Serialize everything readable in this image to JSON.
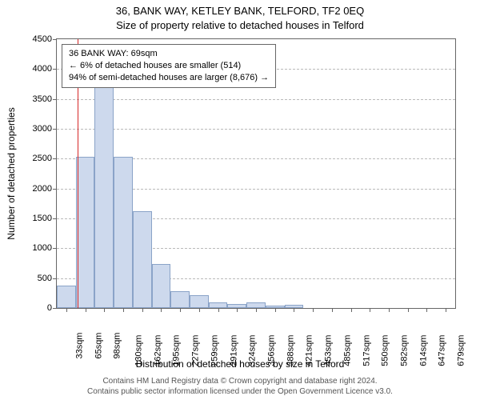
{
  "title": {
    "line1": "36, BANK WAY, KETLEY BANK, TELFORD, TF2 0EQ",
    "line2": "Size of property relative to detached houses in Telford"
  },
  "axes": {
    "ylabel": "Number of detached properties",
    "xlabel": "Distribution of detached houses by size in Telford",
    "ylim": [
      0,
      4500
    ],
    "yticks": [
      0,
      500,
      1000,
      1500,
      2000,
      2500,
      3000,
      3500,
      4000,
      4500
    ],
    "xticks": [
      "33sqm",
      "65sqm",
      "98sqm",
      "130sqm",
      "162sqm",
      "195sqm",
      "227sqm",
      "259sqm",
      "291sqm",
      "324sqm",
      "356sqm",
      "388sqm",
      "421sqm",
      "453sqm",
      "485sqm",
      "517sqm",
      "550sqm",
      "582sqm",
      "614sqm",
      "647sqm",
      "679sqm"
    ],
    "grid_color": "#bbbbbb",
    "border_color": "#666666"
  },
  "chart": {
    "type": "histogram",
    "bar_fill": "#cdd9ed",
    "bar_stroke": "#8aa3c8",
    "background": "#ffffff",
    "indicator_color": "#d62728",
    "indicator_x_bin": 1.1,
    "values": [
      370,
      2530,
      3900,
      2530,
      1620,
      740,
      280,
      220,
      100,
      70,
      100,
      40,
      60,
      0,
      0,
      0,
      0,
      0,
      0,
      0,
      0
    ],
    "bar_width_ratio": 1.0
  },
  "annotation": {
    "line1": "36 BANK WAY: 69sqm",
    "line2": "← 6% of detached houses are smaller (514)",
    "line3": "94% of semi-detached houses are larger (8,676) →",
    "box_stroke": "#666666",
    "box_fill": "#ffffff",
    "fontsize": 11
  },
  "footer": {
    "line1": "Contains HM Land Registry data © Crown copyright and database right 2024.",
    "line2": "Contains public sector information licensed under the Open Government Licence v3.0."
  }
}
